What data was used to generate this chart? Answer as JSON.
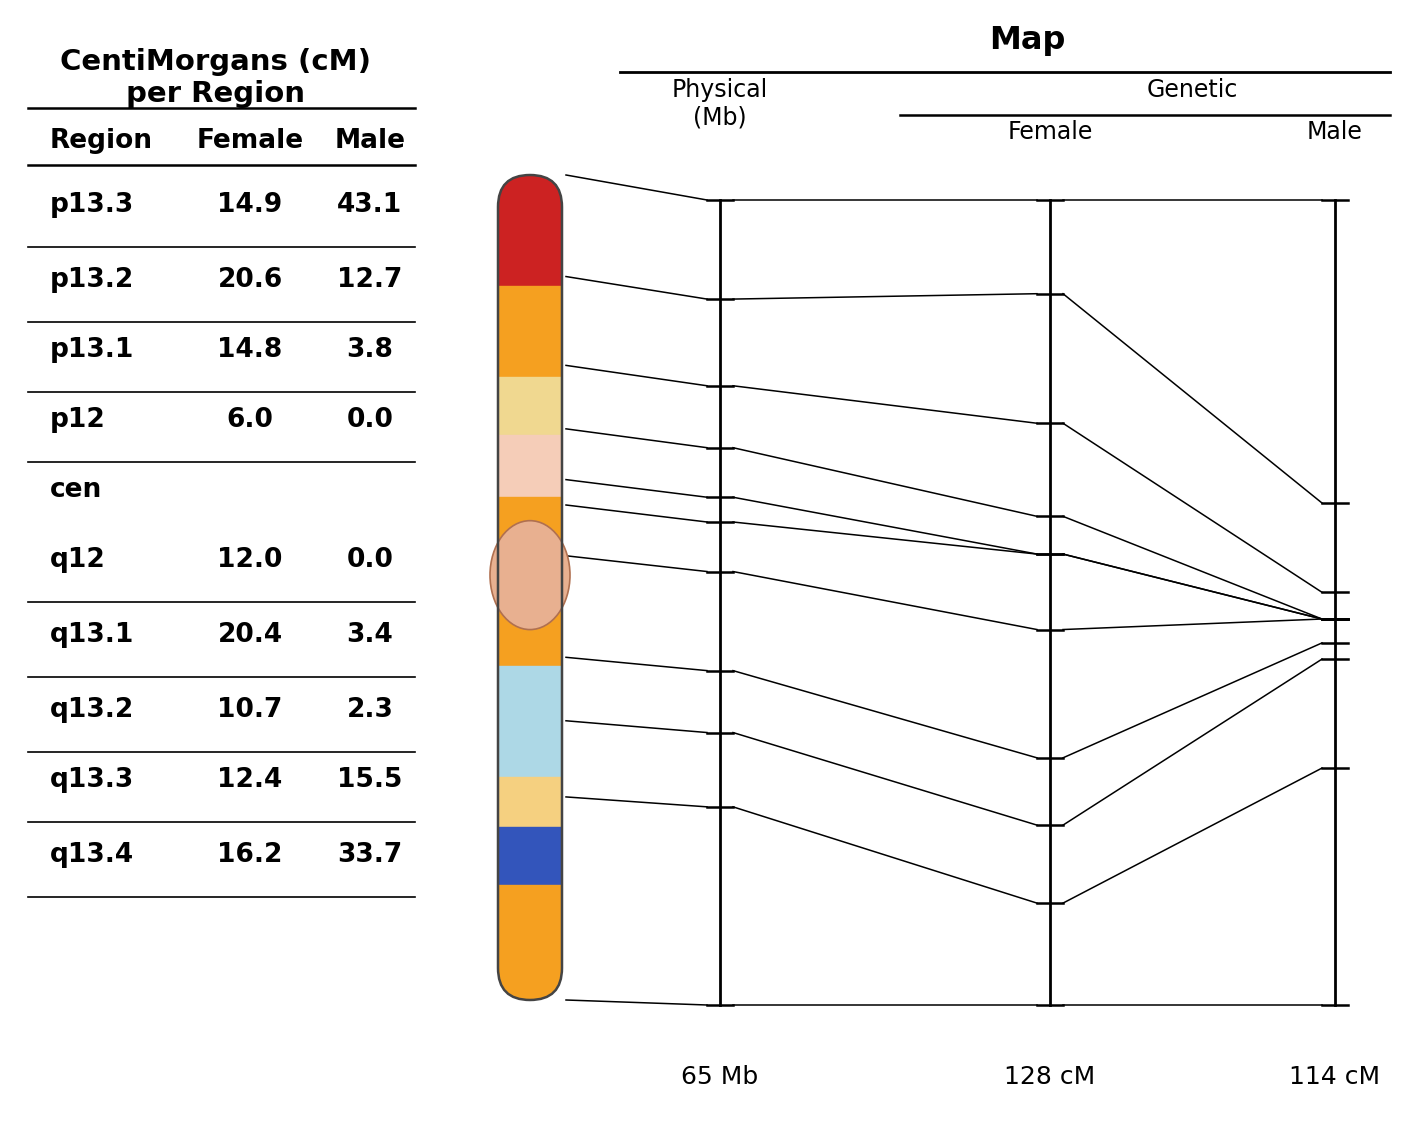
{
  "title_left": "CentiMorgans (cM)\nper Region",
  "table_headers": [
    "Region",
    "Female",
    "Male"
  ],
  "table_rows": [
    [
      "p13.3",
      "14.9",
      "43.1"
    ],
    [
      "p13.2",
      "20.6",
      "12.7"
    ],
    [
      "p13.1",
      "14.8",
      "3.8"
    ],
    [
      "p12",
      "6.0",
      "0.0"
    ],
    [
      "cen",
      "",
      ""
    ],
    [
      "q12",
      "12.0",
      "0.0"
    ],
    [
      "q13.1",
      "20.4",
      "3.4"
    ],
    [
      "q13.2",
      "10.7",
      "2.3"
    ],
    [
      "q13.3",
      "12.4",
      "15.5"
    ],
    [
      "q13.4",
      "16.2",
      "33.7"
    ]
  ],
  "map_title": "Map",
  "phys_label": "Physical\n(Mb)",
  "genetic_label": "Genetic",
  "female_label": "Female",
  "male_label": "Male",
  "bottom_labels": [
    "65 Mb",
    "128 cM",
    "114 cM"
  ],
  "bg_color": "#ffffff",
  "text_color": "#000000",
  "line_color": "#000000",
  "phys_sizes_Mb": [
    8,
    7,
    5,
    4,
    2,
    4,
    8,
    5,
    6,
    16
  ],
  "female_cM": [
    14.9,
    20.6,
    14.8,
    6.0,
    0,
    12.0,
    20.4,
    10.7,
    12.4,
    16.2
  ],
  "male_cM": [
    43.1,
    12.7,
    3.8,
    0.0,
    0,
    0.0,
    3.4,
    2.3,
    15.5,
    33.7
  ],
  "bands": [
    {
      "f1": 0.0,
      "f2": 0.135,
      "color": "#cc2222"
    },
    {
      "f1": 0.135,
      "f2": 0.245,
      "color": "#f5a020"
    },
    {
      "f1": 0.245,
      "f2": 0.315,
      "color": "#f0d890"
    },
    {
      "f1": 0.315,
      "f2": 0.39,
      "color": "#f5cdb8"
    },
    {
      "f1": 0.39,
      "f2": 0.455,
      "color": "#f5a020"
    },
    {
      "f1": 0.515,
      "f2": 0.595,
      "color": "#f5a020"
    },
    {
      "f1": 0.595,
      "f2": 0.73,
      "color": "#add8e6"
    },
    {
      "f1": 0.73,
      "f2": 0.79,
      "color": "#f5d080"
    },
    {
      "f1": 0.79,
      "f2": 0.86,
      "color": "#3355bb"
    },
    {
      "f1": 0.86,
      "f2": 1.0,
      "color": "#f5a020"
    }
  ],
  "cen_f1": 0.455,
  "cen_f2": 0.515
}
